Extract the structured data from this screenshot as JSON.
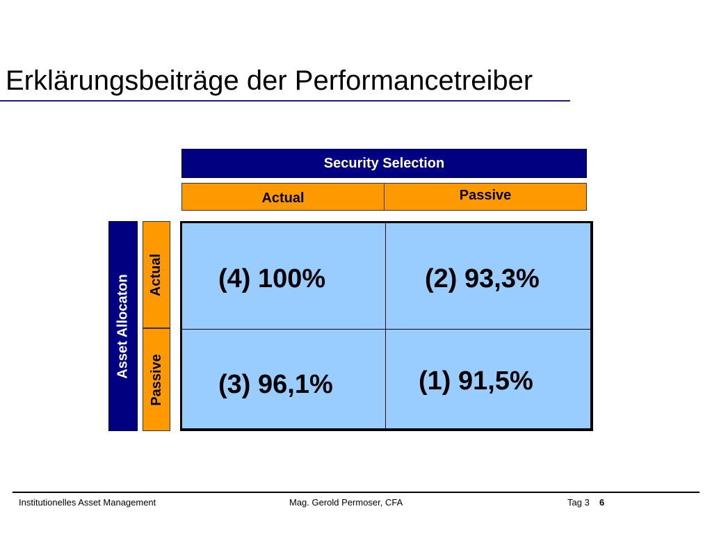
{
  "slide": {
    "title": "Erklärungsbeiträge der Performancetreiber"
  },
  "columns": {
    "header": "Security Selection",
    "actual": "Actual",
    "passive": "Passive"
  },
  "rows": {
    "header": "Asset Allocaton",
    "actual": "Actual",
    "passive": "Passive"
  },
  "matrix": {
    "actual_actual": "(4) 100%",
    "actual_passive": "(2) 93,3%",
    "passive_actual": "(3) 96,1%",
    "passive_passive": "(1) 91,5%"
  },
  "footer": {
    "course": "Institutionelles Asset Management",
    "author": "Mag. Gerold Permoser, CFA",
    "day": "Tag 3",
    "page": "6"
  },
  "colors": {
    "navy": "#000080",
    "orange": "#ff9900",
    "cell_blue": "#99ccff"
  }
}
